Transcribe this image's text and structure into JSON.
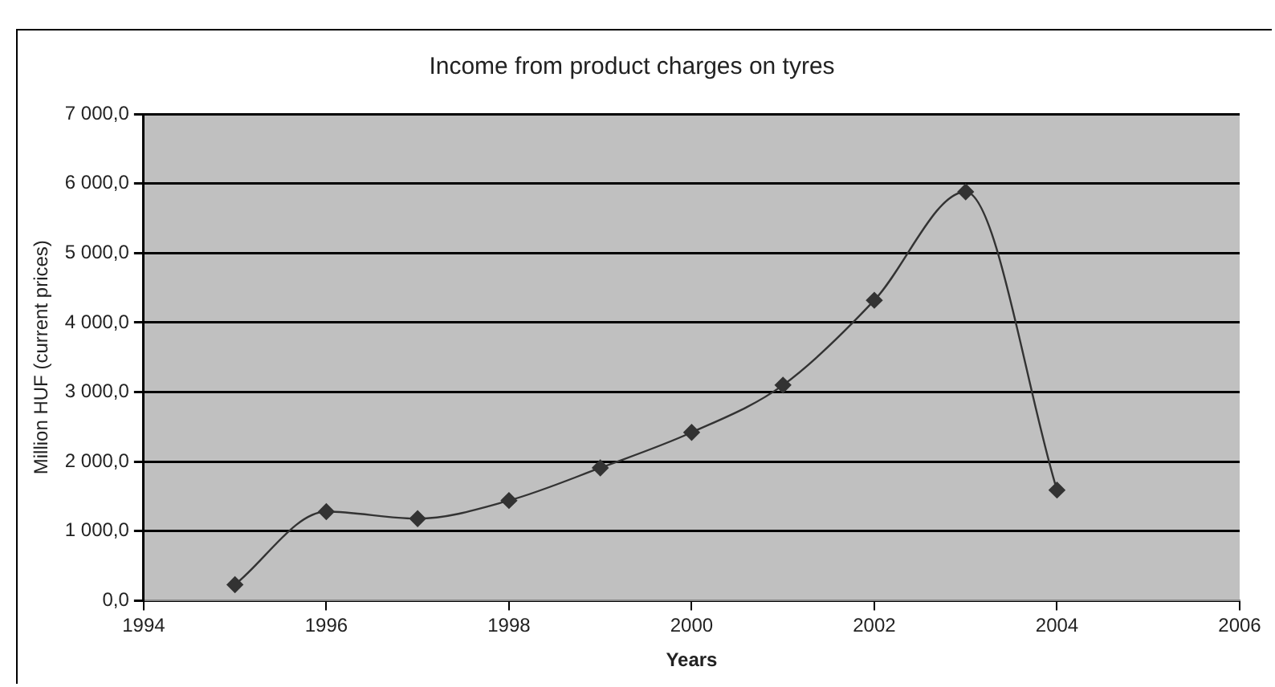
{
  "chart_data": {
    "type": "line",
    "title": "Income from product charges on tyres",
    "xlabel": "Years",
    "ylabel": "Million HUF (current prices)",
    "x": [
      1995,
      1996,
      1997,
      1998,
      1999,
      2000,
      2001,
      2002,
      2003,
      2004
    ],
    "series": [
      {
        "color": "#333333",
        "values": [
          230,
          1280,
          1180,
          1440,
          1910,
          2420,
          3100,
          4320,
          5880,
          1590
        ]
      }
    ],
    "xlim": [
      1994,
      2006
    ],
    "xticks": [
      1994,
      1996,
      1998,
      2000,
      2002,
      2004,
      2006
    ],
    "ylim": [
      0,
      7000
    ],
    "yticks": [
      {
        "value": 0,
        "label": "0,0"
      },
      {
        "value": 1000,
        "label": "1 000,0"
      },
      {
        "value": 2000,
        "label": "2 000,0"
      },
      {
        "value": 3000,
        "label": "3 000,0"
      },
      {
        "value": 4000,
        "label": "4 000,0"
      },
      {
        "value": 5000,
        "label": "5 000,0"
      },
      {
        "value": 6000,
        "label": "6 000,0"
      },
      {
        "value": 7000,
        "label": "7 000,0"
      }
    ],
    "grid": "y",
    "legend": false,
    "marker": "diamond",
    "line_style": "solid"
  }
}
